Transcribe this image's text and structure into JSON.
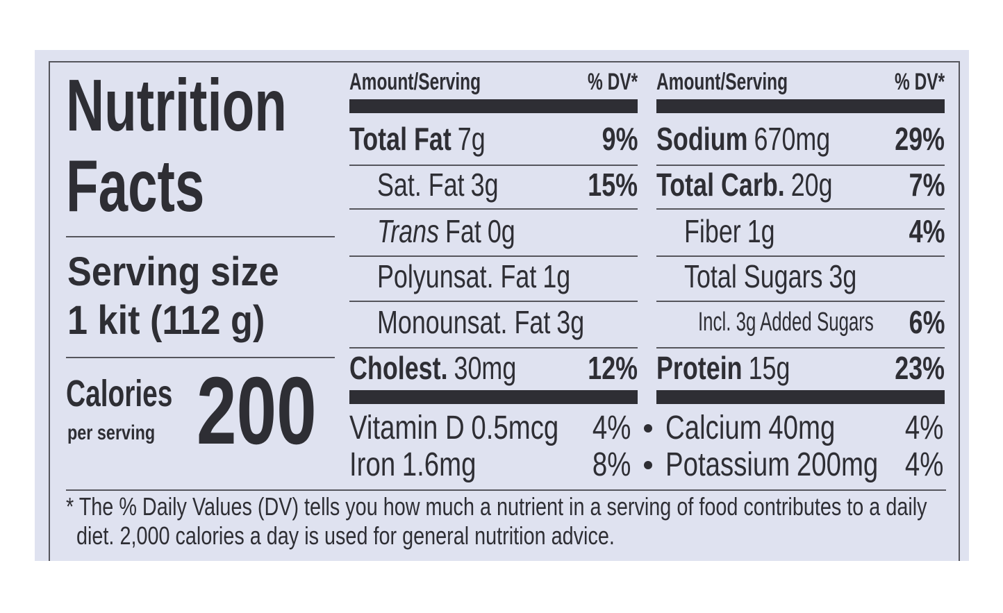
{
  "title": [
    "Nutrition",
    "Facts"
  ],
  "serving": {
    "label": "Serving size",
    "amount": "1 kit (112 g)"
  },
  "calories": {
    "label": "Calories",
    "note": "per serving",
    "value": 200
  },
  "columns": [
    {
      "amount_header": "Amount/Serving",
      "dv_header": "% DV*",
      "rows": [
        {
          "name": "Total Fat",
          "amount": "7g",
          "dv": "9%",
          "bold": true
        },
        {
          "name": "Sat. Fat",
          "amount": "3g",
          "dv": "15%",
          "indent": 1
        },
        {
          "italic_prefix": "Trans",
          "name": "Fat",
          "amount": "0g",
          "indent": 1
        },
        {
          "name": "Polyunsat. Fat",
          "amount": "1g",
          "indent": 1
        },
        {
          "name": "Monounsat. Fat",
          "amount": "3g",
          "indent": 1
        },
        {
          "name": "Cholest.",
          "amount": "30mg",
          "dv": "12%",
          "bold": true
        }
      ]
    },
    {
      "amount_header": "Amount/Serving",
      "dv_header": "% DV*",
      "rows": [
        {
          "name": "Sodium",
          "amount": "670mg",
          "dv": "29%",
          "bold": true
        },
        {
          "name": "Total Carb.",
          "amount": "20g",
          "dv": "7%",
          "bold": true
        },
        {
          "name": "Fiber",
          "amount": "1g",
          "dv": "4%",
          "indent": 1
        },
        {
          "name": "Total Sugars",
          "amount": "3g",
          "indent": 1
        },
        {
          "name": "Incl. 3g Added Sugars",
          "dv": "6%",
          "indent": 2,
          "small": true
        },
        {
          "name": "Protein",
          "amount": "15g",
          "dv": "23%",
          "bold": true
        }
      ]
    }
  ],
  "vitamins": [
    [
      {
        "name": "Vitamin D",
        "amount": "0.5mcg",
        "dv": "4%"
      },
      {
        "name": "Iron",
        "amount": "1.6mg",
        "dv": "8%"
      }
    ],
    [
      {
        "name": "Calcium",
        "amount": "40mg",
        "dv": "4%"
      },
      {
        "name": "Potassium",
        "amount": "200mg",
        "dv": "4%"
      }
    ]
  ],
  "footnote": [
    "* The % Daily Values (DV) tells you how much a nutrient in a serving of food contributes to a daily",
    "diet. 2,000 calories a day is used for general nutrition advice."
  ]
}
